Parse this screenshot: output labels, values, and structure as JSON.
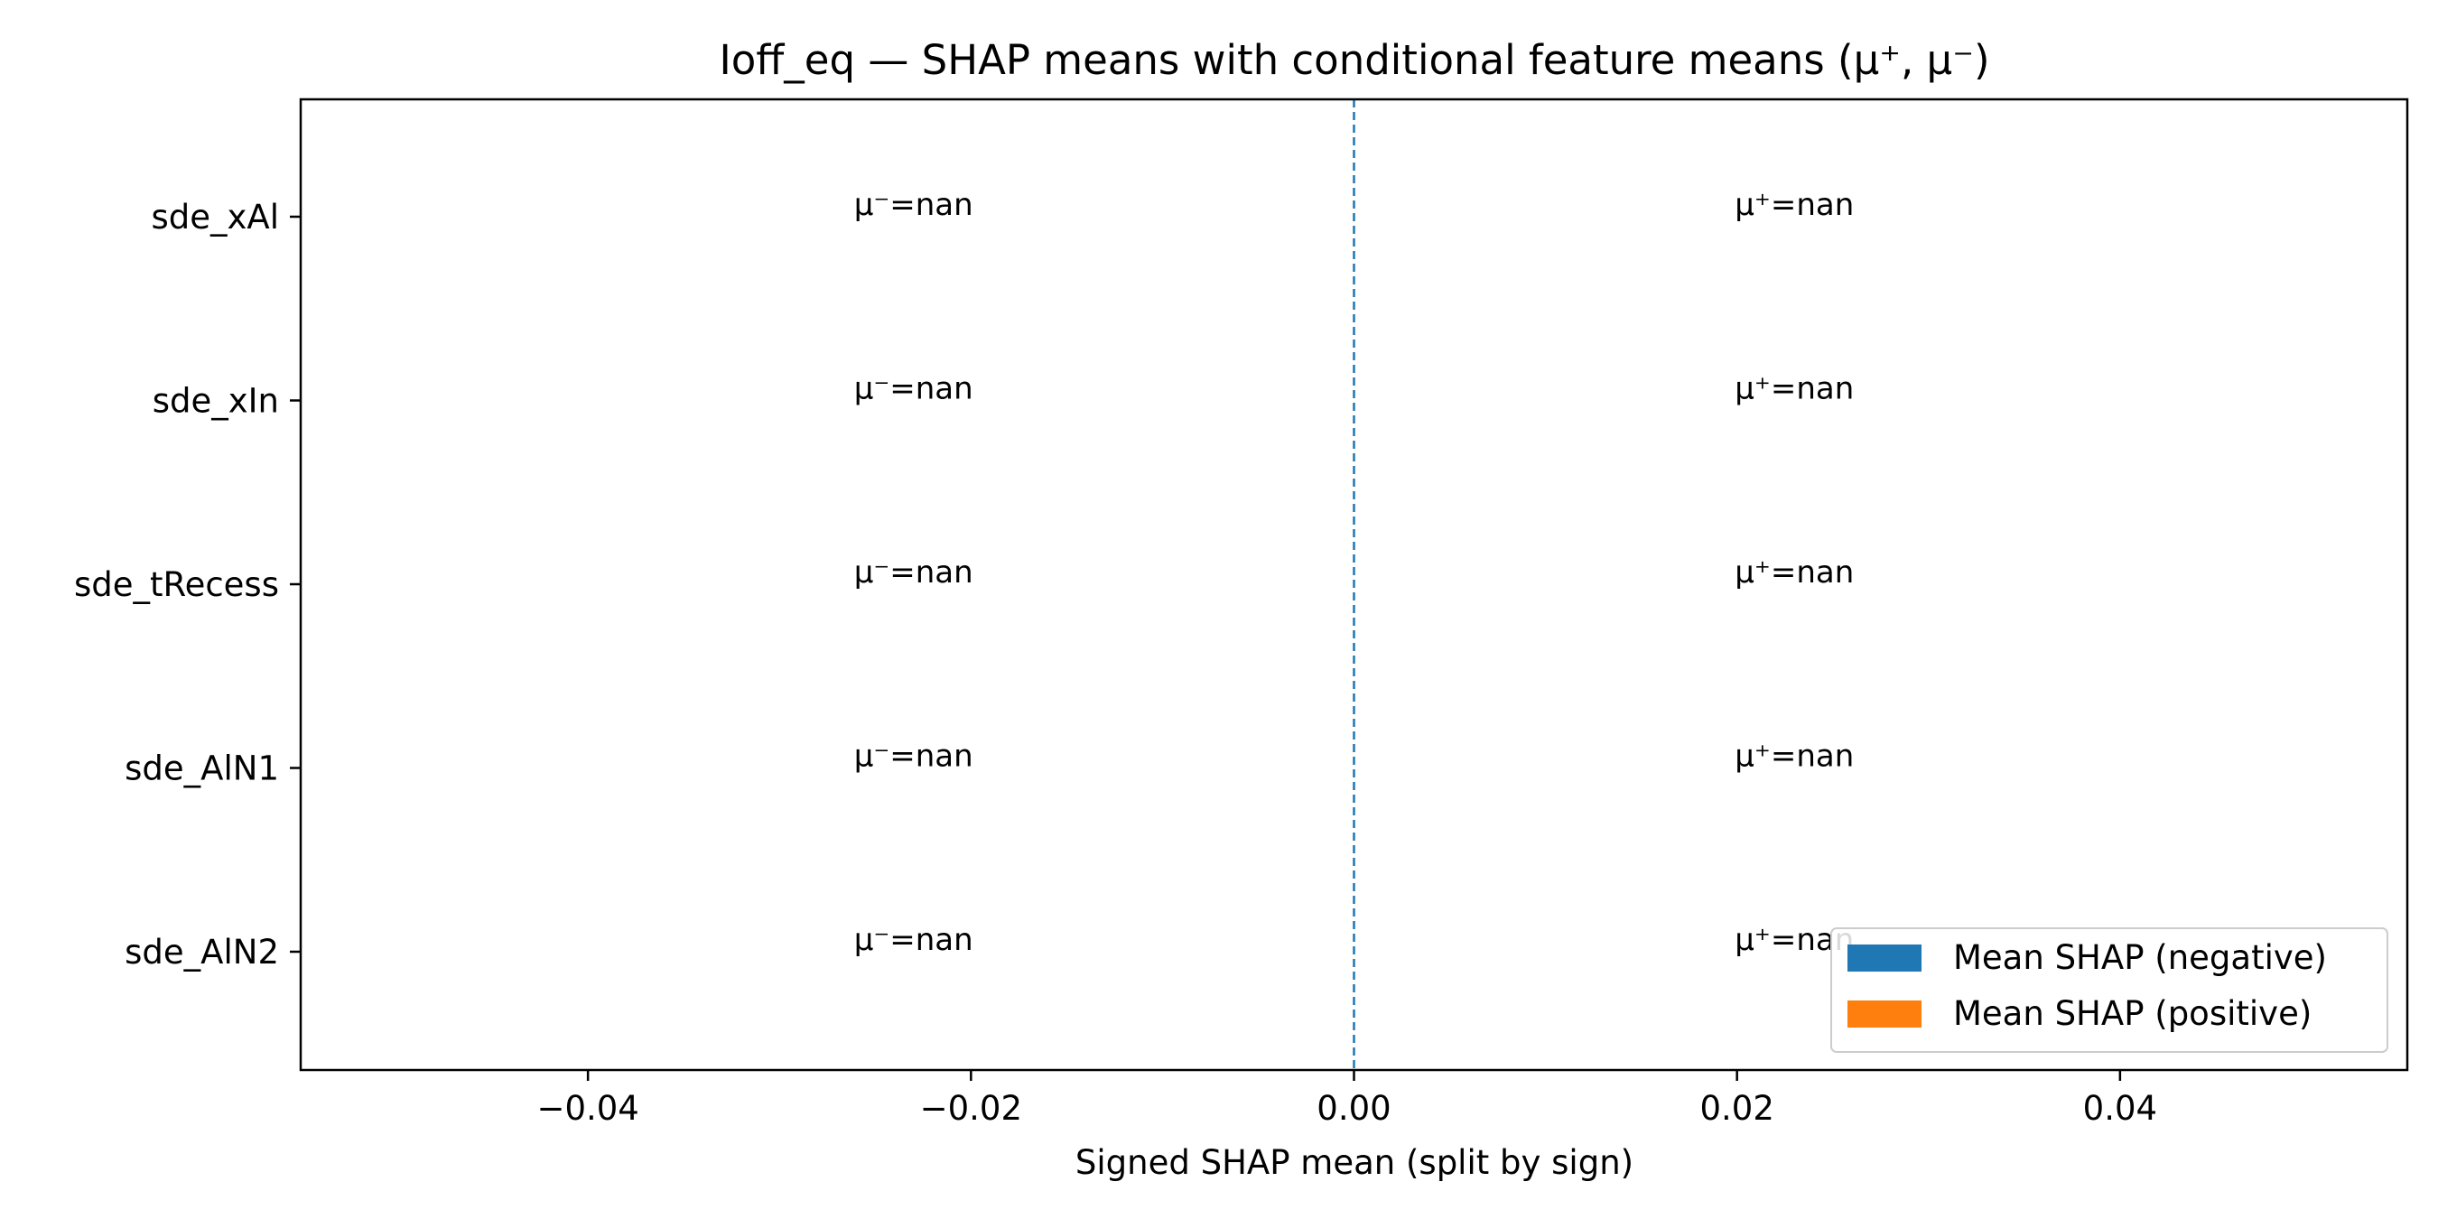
{
  "chart_data": {
    "type": "bar",
    "orientation": "horizontal",
    "title": "Ioff_eq — SHAP means with conditional feature means (μ⁺, μ⁻)",
    "xlabel": "Signed SHAP mean (split by sign)",
    "ylabel": "",
    "xlim": [
      -0.055,
      0.055
    ],
    "xticks": [
      -0.04,
      -0.02,
      0.0,
      0.02,
      0.04
    ],
    "xtick_labels": [
      "−0.04",
      "−0.02",
      "0.00",
      "0.02",
      "0.04"
    ],
    "categories": [
      "sde_xAl",
      "sde_xIn",
      "sde_tRecess",
      "sde_AlN1",
      "sde_AlN2"
    ],
    "series": [
      {
        "name": "Mean SHAP (negative)",
        "color": "#1f77b4",
        "values": [
          0,
          0,
          0,
          0,
          0
        ]
      },
      {
        "name": "Mean SHAP (positive)",
        "color": "#ff7f0e",
        "values": [
          0,
          0,
          0,
          0,
          0
        ]
      }
    ],
    "annotations": {
      "neg": {
        "x": -0.023,
        "labels": [
          "μ⁻=nan",
          "μ⁻=nan",
          "μ⁻=nan",
          "μ⁻=nan",
          "μ⁻=nan"
        ]
      },
      "pos": {
        "x": 0.023,
        "labels": [
          "μ⁺=nan",
          "μ⁺=nan",
          "μ⁺=nan",
          "μ⁺=nan",
          "μ⁺=nan"
        ]
      }
    },
    "reference_line": {
      "x": 0.0,
      "style": "dashed",
      "color": "#1f77b4"
    },
    "legend_position": "lower-right",
    "grid": false
  }
}
